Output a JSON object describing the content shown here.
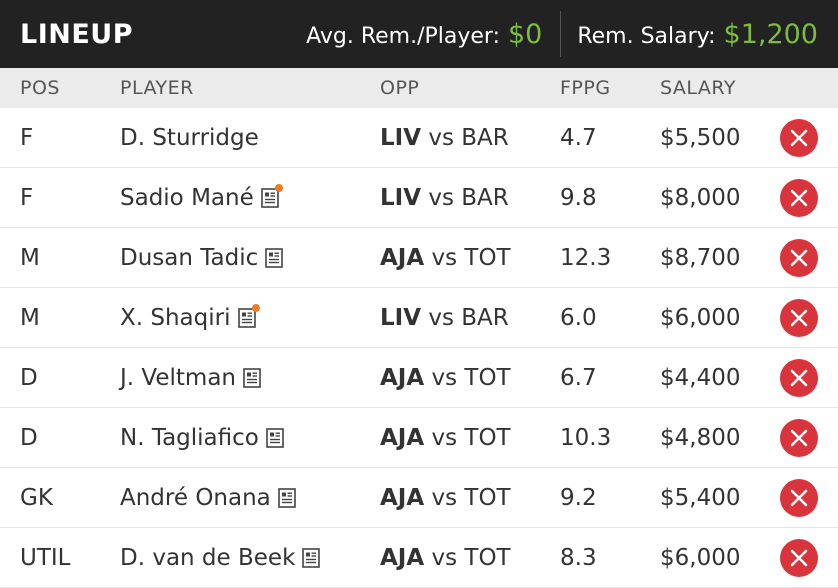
{
  "header": {
    "title": "LINEUP",
    "avg_label": "Avg. Rem./Player:",
    "avg_value": "$0",
    "rem_label": "Rem. Salary:",
    "rem_value": "$1,200"
  },
  "columns": {
    "pos": "POS",
    "player": "PLAYER",
    "opp": "OPP",
    "fppg": "FPPG",
    "salary": "SALARY"
  },
  "vs_text": "vs",
  "rows": [
    {
      "pos": "F",
      "player": "D. Sturridge",
      "team": "LIV",
      "opp": "BAR",
      "fppg": "4.7",
      "salary": "$5,500",
      "news_icon": false,
      "news_alert": false
    },
    {
      "pos": "F",
      "player": "Sadio Mané",
      "team": "LIV",
      "opp": "BAR",
      "fppg": "9.8",
      "salary": "$8,000",
      "news_icon": true,
      "news_alert": true
    },
    {
      "pos": "M",
      "player": "Dusan Tadic",
      "team": "AJA",
      "opp": "TOT",
      "fppg": "12.3",
      "salary": "$8,700",
      "news_icon": true,
      "news_alert": false
    },
    {
      "pos": "M",
      "player": "X. Shaqiri",
      "team": "LIV",
      "opp": "BAR",
      "fppg": "6.0",
      "salary": "$6,000",
      "news_icon": true,
      "news_alert": true
    },
    {
      "pos": "D",
      "player": "J. Veltman",
      "team": "AJA",
      "opp": "TOT",
      "fppg": "6.7",
      "salary": "$4,400",
      "news_icon": true,
      "news_alert": false
    },
    {
      "pos": "D",
      "player": "N. Tagliafico",
      "team": "AJA",
      "opp": "TOT",
      "fppg": "10.3",
      "salary": "$4,800",
      "news_icon": true,
      "news_alert": false
    },
    {
      "pos": "GK",
      "player": "André Onana",
      "team": "AJA",
      "opp": "TOT",
      "fppg": "9.2",
      "salary": "$5,400",
      "news_icon": true,
      "news_alert": false
    },
    {
      "pos": "UTIL",
      "player": "D. van de Beek",
      "team": "AJA",
      "opp": "TOT",
      "fppg": "8.3",
      "salary": "$6,000",
      "news_icon": true,
      "news_alert": false
    }
  ],
  "colors": {
    "header_bg": "#222222",
    "accent_green": "#7cbd3f",
    "remove_red": "#d9333b",
    "alert_orange": "#f07b22"
  },
  "icons": {
    "news": "news-icon",
    "remove": "remove-icon"
  }
}
